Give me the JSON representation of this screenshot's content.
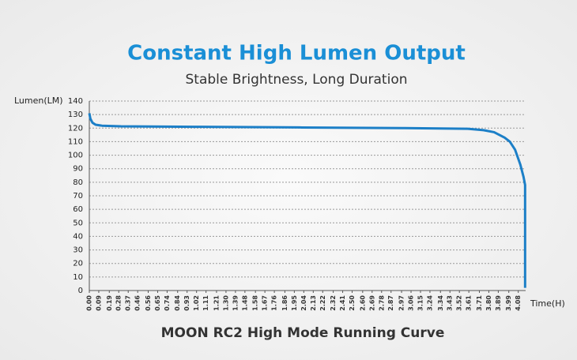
{
  "chart_data": {
    "type": "line",
    "title": "Constant High Lumen Output",
    "subtitle": "Stable Brightness, Long Duration",
    "caption": "MOON RC2 High Mode Running Curve",
    "y_label": "Lumen(LM)",
    "x_label": "Time(H)",
    "color": "#1c7fc7",
    "x": [
      0,
      0.01,
      0.03,
      0.06,
      0.12,
      0.3,
      1.0,
      2.0,
      3.0,
      3.6,
      3.75,
      3.85,
      3.95,
      4.0,
      4.05,
      4.1,
      4.13,
      4.145,
      4.145
    ],
    "values": [
      131,
      127,
      124,
      122.5,
      121.8,
      121.3,
      121,
      120.5,
      120,
      119.5,
      118.5,
      117,
      113,
      110,
      104,
      93,
      84,
      78,
      2
    ],
    "xlim": [
      0,
      4.15
    ],
    "ylim": [
      0,
      140
    ],
    "xticks": [
      {
        "value": 0,
        "label": "0.00"
      },
      0.09,
      0.19,
      0.28,
      0.37,
      0.46,
      0.56,
      0.65,
      0.74,
      0.84,
      0.93,
      1.02,
      1.11,
      1.21,
      {
        "value": 1.3,
        "label": "1.30"
      },
      1.39,
      1.48,
      1.58,
      1.67,
      1.76,
      1.86,
      1.95,
      2.04,
      2.13,
      2.22,
      2.32,
      2.41,
      {
        "value": 2.5,
        "label": "2.50"
      },
      {
        "value": 2.6,
        "label": "2.60"
      },
      2.69,
      2.78,
      2.87,
      2.97,
      3.06,
      3.15,
      3.24,
      3.34,
      3.43,
      3.52,
      3.61,
      3.71,
      {
        "value": 3.8,
        "label": "3.80"
      },
      3.89,
      3.99,
      4.08
    ],
    "yticks": [
      0,
      10,
      20,
      30,
      40,
      50,
      60,
      70,
      80,
      90,
      100,
      110,
      120,
      130,
      140
    ],
    "grid": true
  }
}
